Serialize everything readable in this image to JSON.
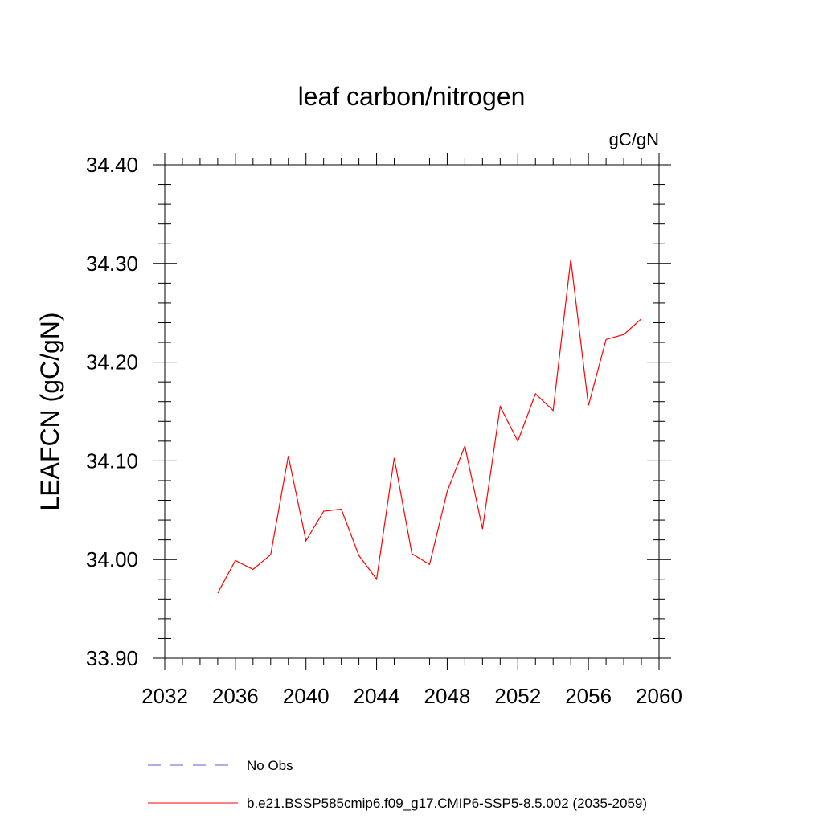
{
  "chart_data": {
    "type": "line",
    "title": "leaf carbon/nitrogen",
    "units": "gC/gN",
    "xlabel": "",
    "ylabel": "LEAFCN  (gC/gN)",
    "xlim": [
      2032,
      2060
    ],
    "ylim": [
      33.9,
      34.4
    ],
    "xticks": [
      "2032",
      "2036",
      "2040",
      "2044",
      "2048",
      "2052",
      "2056",
      "2060"
    ],
    "yticks": [
      "33.90",
      "34.00",
      "34.10",
      "34.20",
      "34.30",
      "34.40"
    ],
    "grid": false,
    "legend_position": "bottom",
    "series": [
      {
        "name": "No Obs",
        "color": "#6a5acd",
        "style": "dashed",
        "x": [],
        "values": []
      },
      {
        "name": "b.e21.BSSP585cmip6.f09_g17.CMIP6-SSP5-8.5.002 (2035-2059)",
        "color": "#ff0000",
        "style": "solid",
        "x": [
          2035,
          2036,
          2037,
          2038,
          2039,
          2040,
          2041,
          2042,
          2043,
          2044,
          2045,
          2046,
          2047,
          2048,
          2049,
          2050,
          2051,
          2052,
          2053,
          2054,
          2055,
          2056,
          2057,
          2058,
          2059
        ],
        "values": [
          33.966,
          33.999,
          33.99,
          34.005,
          34.105,
          34.019,
          34.049,
          34.051,
          34.004,
          33.98,
          34.103,
          34.006,
          33.995,
          34.069,
          34.115,
          34.031,
          34.155,
          34.12,
          34.168,
          34.151,
          34.304,
          34.156,
          34.223,
          34.228,
          34.244
        ]
      }
    ]
  }
}
